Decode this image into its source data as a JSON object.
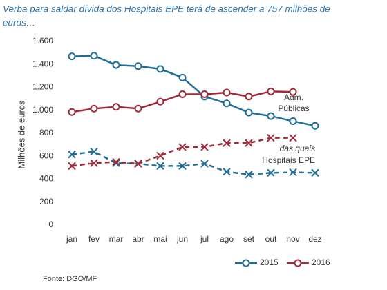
{
  "chart_data": {
    "type": "line",
    "title": [
      "Verba para saldar dívida dos Hospitais EPE terá de ascender a 757 milhões de",
      "euros…"
    ],
    "y_label": "Milhões de euros",
    "categories": [
      "jan",
      "fev",
      "mar",
      "abr",
      "mai",
      "jun",
      "jul",
      "ago",
      "set",
      "out",
      "nov",
      "dez"
    ],
    "series": [
      {
        "name": "2015",
        "color": "#1f6e96",
        "values": [
          1470,
          1475,
          1395,
          1385,
          1360,
          1285,
          1120,
          1060,
          980,
          950,
          905,
          865
        ],
        "hospitais_values": [
          615,
          640,
          540,
          535,
          515,
          515,
          535,
          465,
          440,
          455,
          460,
          455
        ]
      },
      {
        "name": "2016",
        "color": "#9e2a3a",
        "values": [
          985,
          1015,
          1030,
          1015,
          1075,
          1140,
          1140,
          1155,
          1120,
          1165,
          1160,
          null
        ],
        "hospitais_values": [
          515,
          540,
          550,
          535,
          605,
          680,
          680,
          715,
          715,
          760,
          760,
          null
        ]
      }
    ],
    "ylim": [
      0,
      1600
    ],
    "yticks": [
      0,
      200,
      400,
      600,
      800,
      {
        "value": 1000,
        "label": "1.000"
      },
      {
        "value": 1200,
        "label": "1.200"
      },
      {
        "value": 1400,
        "label": "1.400"
      },
      {
        "value": 1600,
        "label": "1.600"
      }
    ],
    "annotations": {
      "adm": [
        "Adm.",
        "Públicas"
      ],
      "hospitais": [
        "das quais",
        "Hospitais EPE"
      ]
    },
    "source": "Fonte: DGO/MF"
  }
}
